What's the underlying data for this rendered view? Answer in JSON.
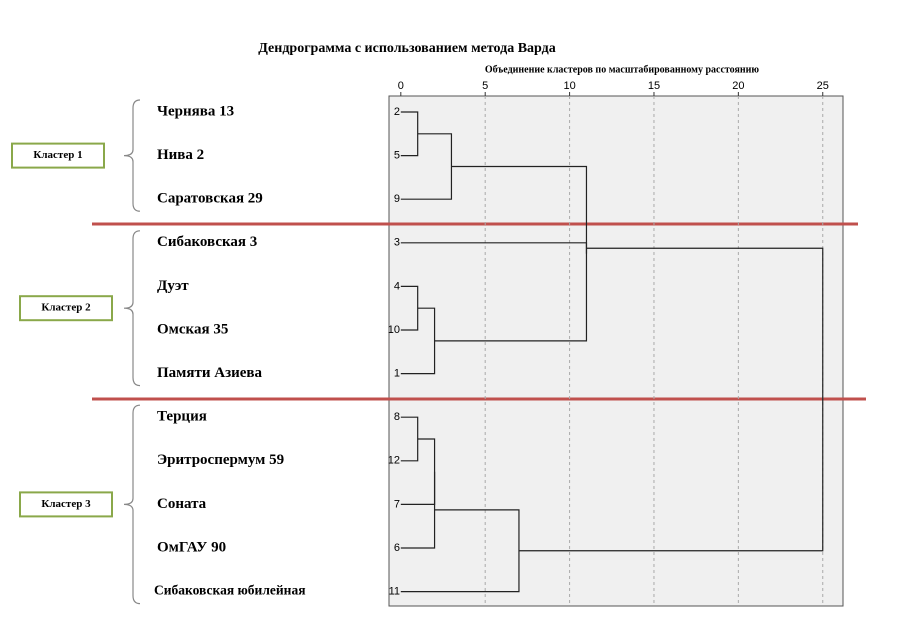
{
  "chart_data": {
    "type": "dendrogram",
    "title": "Дендрограмма с использованием метода Варда",
    "xlabel": "Объединение кластеров по масштабированному расстоянию",
    "xlim": [
      -0.7,
      26.2
    ],
    "xticks": [
      0,
      5,
      10,
      15,
      20,
      25
    ],
    "grid": true,
    "leaves": [
      {
        "id": 2,
        "name": "Чернява 13"
      },
      {
        "id": 5,
        "name": "Нива 2"
      },
      {
        "id": 9,
        "name": "Саратовская 29"
      },
      {
        "id": 3,
        "name": "Сибаковская 3"
      },
      {
        "id": 4,
        "name": "Дуэт"
      },
      {
        "id": 10,
        "name": "Омская 35"
      },
      {
        "id": 1,
        "name": "Памяти Азиева"
      },
      {
        "id": 8,
        "name": "Терция"
      },
      {
        "id": 12,
        "name": "Эритроспермум 59"
      },
      {
        "id": 7,
        "name": "Соната"
      },
      {
        "id": 6,
        "name": "ОмГАУ 90"
      },
      {
        "id": 11,
        "name": "Сибаковская юбилейная"
      }
    ],
    "merges": [
      {
        "children": [
          0,
          1
        ],
        "height": 1
      },
      {
        "children": [
          12,
          2
        ],
        "height": 3
      },
      {
        "children": [
          4,
          5
        ],
        "height": 1
      },
      {
        "children": [
          14,
          6
        ],
        "height": 2
      },
      {
        "children": [
          13,
          15
        ],
        "height": 11
      },
      {
        "children": [
          3,
          16
        ],
        "height": 11
      },
      {
        "children": [
          7,
          8
        ],
        "height": 1
      },
      {
        "children": [
          18,
          9
        ],
        "height": 2
      },
      {
        "children": [
          19,
          10
        ],
        "height": 2
      },
      {
        "children": [
          20,
          11
        ],
        "height": 7
      },
      {
        "children": [
          17,
          21
        ],
        "height": 25
      }
    ],
    "clusters": [
      "Кластер 1",
      "Кластер 2",
      "Кластер 3"
    ]
  }
}
